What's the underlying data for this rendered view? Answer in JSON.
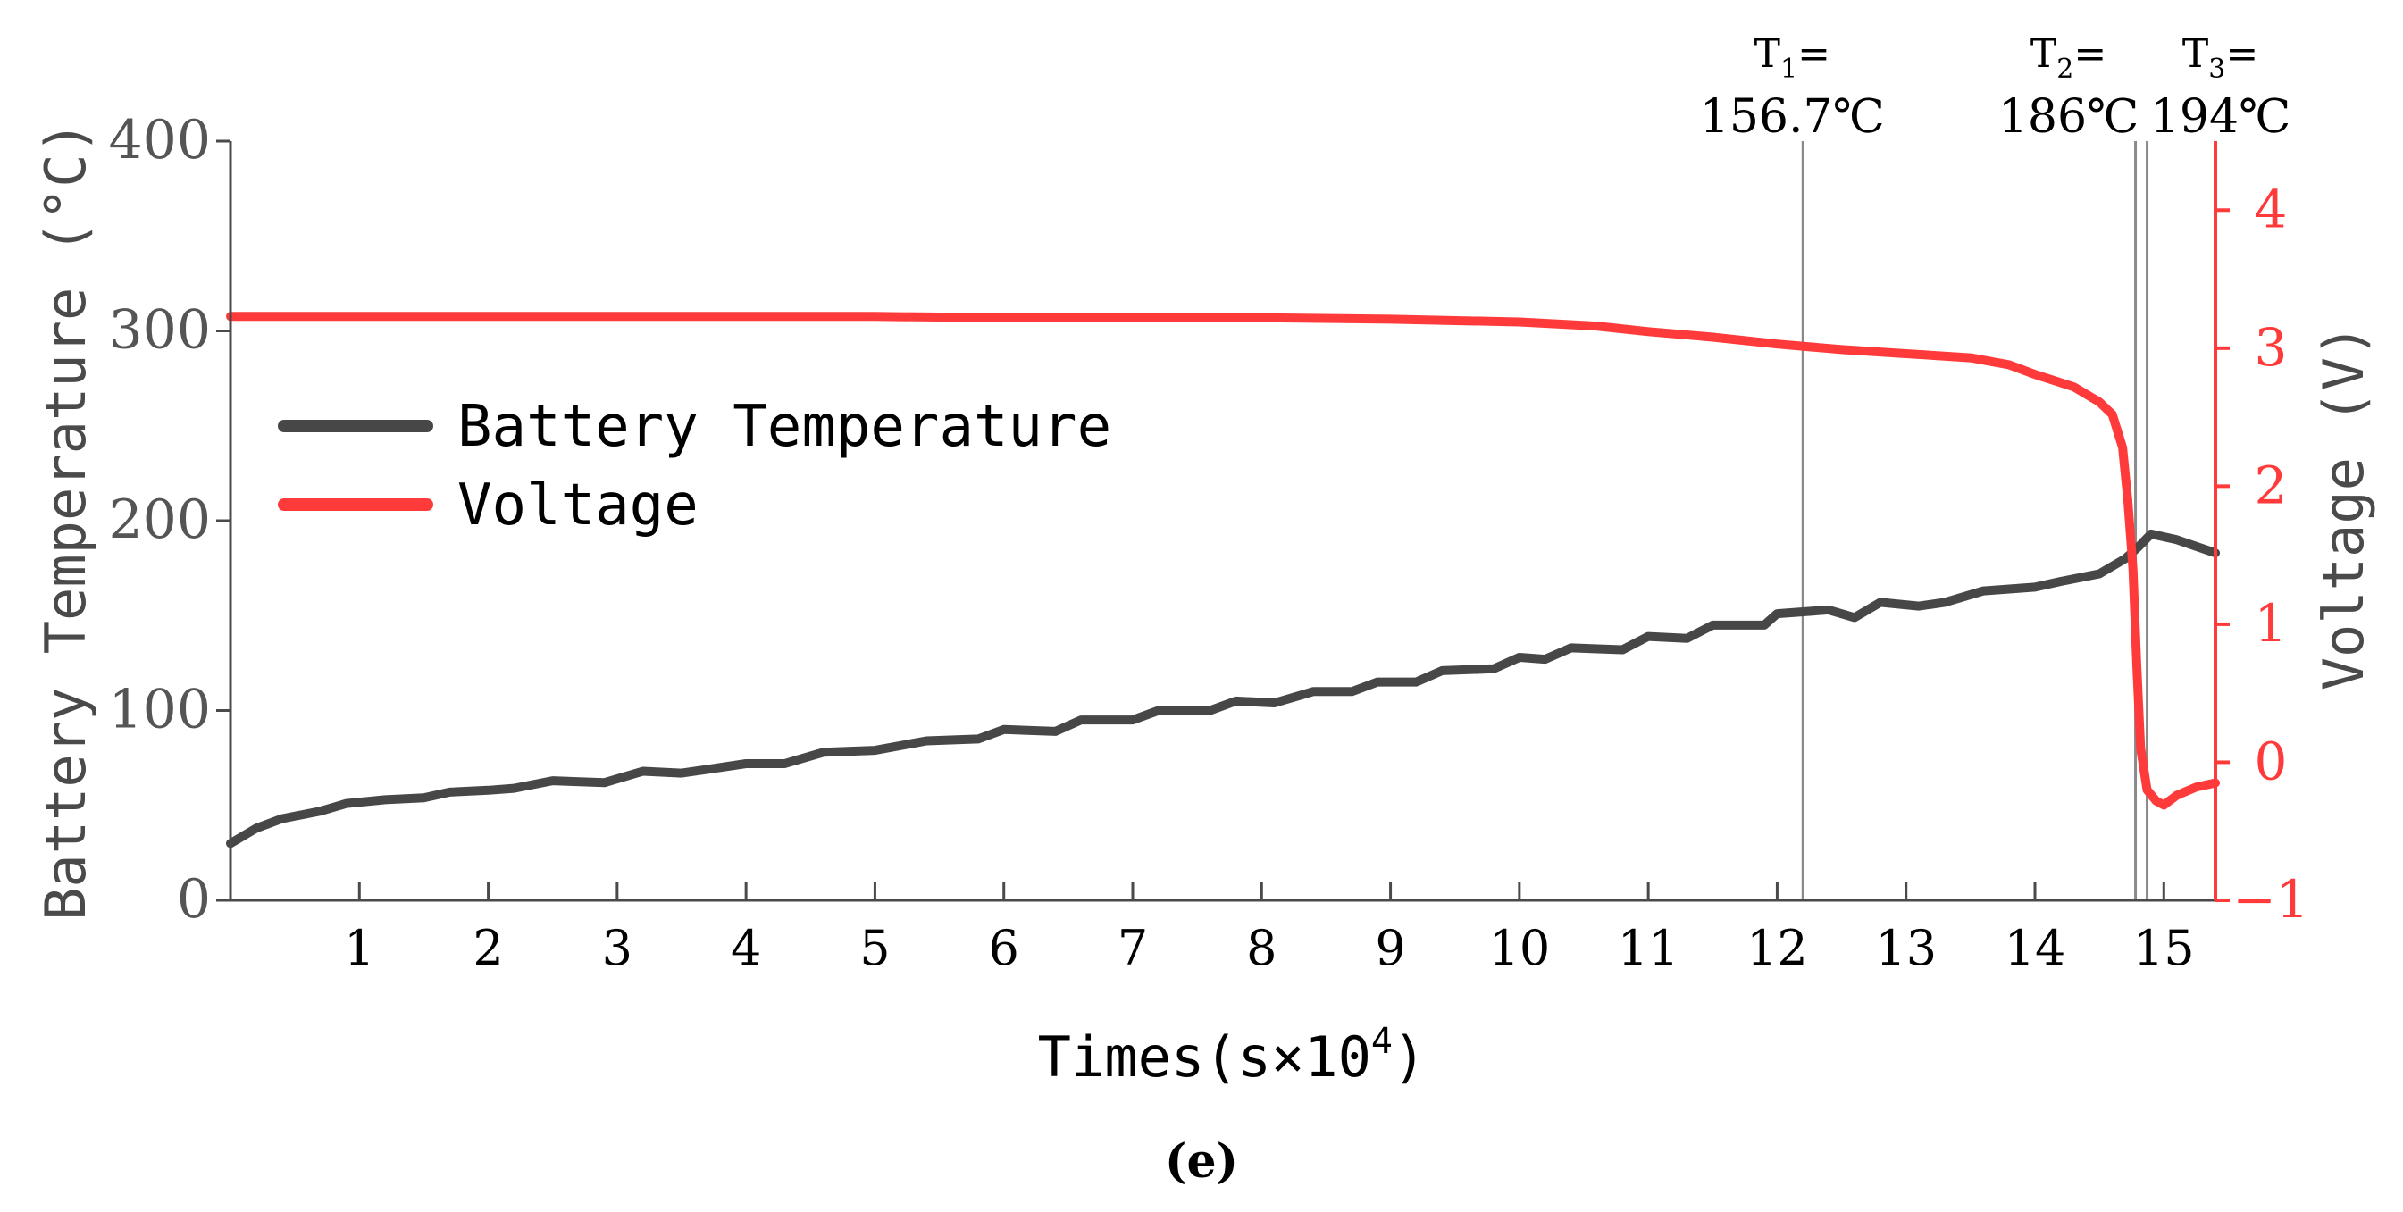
{
  "chart_data": {
    "type": "line",
    "x_axis": {
      "label_main": "Times(s×10",
      "label_sup": "4",
      "label_close": ")",
      "range": [
        0,
        15.4
      ],
      "ticks": [
        1,
        2,
        3,
        4,
        5,
        6,
        7,
        8,
        9,
        10,
        11,
        12,
        13,
        14,
        15
      ],
      "tick_labels": [
        "1",
        "2",
        "3",
        "4",
        "5",
        "6",
        "7",
        "8",
        "9",
        "10",
        "11",
        "12",
        "13",
        "14",
        "15"
      ]
    },
    "y_left": {
      "label": "Battery Temperature (°C)",
      "range": [
        0,
        400
      ],
      "ticks": [
        0,
        100,
        200,
        300,
        400
      ],
      "tick_labels": [
        "0",
        "100",
        "200",
        "300",
        "400"
      ],
      "color": "#4a4a4a"
    },
    "y_right": {
      "label": "Voltage (V)",
      "range": [
        -1,
        4.5
      ],
      "ticks": [
        -1,
        0,
        1,
        2,
        3,
        4
      ],
      "tick_labels": [
        "−1",
        "0",
        "1",
        "2",
        "3",
        "4"
      ],
      "color": "#ff3a3a"
    },
    "series": [
      {
        "name": "Battery Temperature",
        "axis": "left",
        "color": "#474747",
        "points": [
          [
            0,
            30
          ],
          [
            0.2,
            38
          ],
          [
            0.4,
            43
          ],
          [
            0.7,
            47
          ],
          [
            0.9,
            51
          ],
          [
            1.2,
            53
          ],
          [
            1.5,
            54
          ],
          [
            1.7,
            57
          ],
          [
            2.0,
            58
          ],
          [
            2.2,
            59
          ],
          [
            2.5,
            63
          ],
          [
            2.9,
            62
          ],
          [
            3.2,
            68
          ],
          [
            3.5,
            67
          ],
          [
            3.7,
            69
          ],
          [
            4.0,
            72
          ],
          [
            4.3,
            72
          ],
          [
            4.6,
            78
          ],
          [
            5.0,
            79
          ],
          [
            5.4,
            84
          ],
          [
            5.8,
            85
          ],
          [
            6.0,
            90
          ],
          [
            6.4,
            89
          ],
          [
            6.6,
            95
          ],
          [
            7.0,
            95
          ],
          [
            7.2,
            100
          ],
          [
            7.6,
            100
          ],
          [
            7.8,
            105
          ],
          [
            8.1,
            104
          ],
          [
            8.4,
            110
          ],
          [
            8.7,
            110
          ],
          [
            8.9,
            115
          ],
          [
            9.2,
            115
          ],
          [
            9.4,
            121
          ],
          [
            9.8,
            122
          ],
          [
            10.0,
            128
          ],
          [
            10.2,
            127
          ],
          [
            10.4,
            133
          ],
          [
            10.8,
            132
          ],
          [
            11.0,
            139
          ],
          [
            11.3,
            138
          ],
          [
            11.5,
            145
          ],
          [
            11.9,
            145
          ],
          [
            12.0,
            151
          ],
          [
            12.4,
            153
          ],
          [
            12.6,
            149
          ],
          [
            12.8,
            157
          ],
          [
            13.1,
            155
          ],
          [
            13.3,
            157
          ],
          [
            13.6,
            163
          ],
          [
            14.0,
            165
          ],
          [
            14.2,
            168
          ],
          [
            14.5,
            172
          ],
          [
            14.7,
            180
          ],
          [
            14.8,
            186
          ],
          [
            14.9,
            193
          ],
          [
            15.1,
            190
          ],
          [
            15.4,
            183
          ]
        ]
      },
      {
        "name": "Voltage",
        "axis": "right",
        "color": "#ff3a3a",
        "points": [
          [
            0,
            3.23
          ],
          [
            1,
            3.23
          ],
          [
            2,
            3.23
          ],
          [
            3,
            3.23
          ],
          [
            4,
            3.23
          ],
          [
            5,
            3.23
          ],
          [
            6,
            3.22
          ],
          [
            7,
            3.22
          ],
          [
            8,
            3.22
          ],
          [
            9,
            3.21
          ],
          [
            10,
            3.19
          ],
          [
            10.6,
            3.16
          ],
          [
            11,
            3.12
          ],
          [
            11.5,
            3.08
          ],
          [
            12,
            3.03
          ],
          [
            12.5,
            2.99
          ],
          [
            13,
            2.96
          ],
          [
            13.5,
            2.93
          ],
          [
            13.8,
            2.88
          ],
          [
            14.0,
            2.81
          ],
          [
            14.3,
            2.72
          ],
          [
            14.5,
            2.61
          ],
          [
            14.6,
            2.52
          ],
          [
            14.68,
            2.28
          ],
          [
            14.72,
            1.9
          ],
          [
            14.76,
            1.4
          ],
          [
            14.79,
            0.7
          ],
          [
            14.82,
            0.1
          ],
          [
            14.87,
            -0.2
          ],
          [
            14.94,
            -0.28
          ],
          [
            15.0,
            -0.31
          ],
          [
            15.1,
            -0.24
          ],
          [
            15.25,
            -0.18
          ],
          [
            15.4,
            -0.15
          ]
        ]
      }
    ],
    "annotations": [
      {
        "x": 12.2,
        "label_base": "T",
        "label_sub": "1",
        "label_eq": "=",
        "value": "156.7℃"
      },
      {
        "x": 14.78,
        "label_base": "T",
        "label_sub": "2",
        "label_eq": "=",
        "value": "186℃"
      },
      {
        "x": 14.87,
        "label_base": "T",
        "label_sub": "3",
        "label_eq": "=",
        "value": "194℃"
      }
    ],
    "legend": {
      "position": "upper-left",
      "entries": [
        "Battery Temperature",
        "Voltage"
      ]
    },
    "caption": "(e)"
  }
}
